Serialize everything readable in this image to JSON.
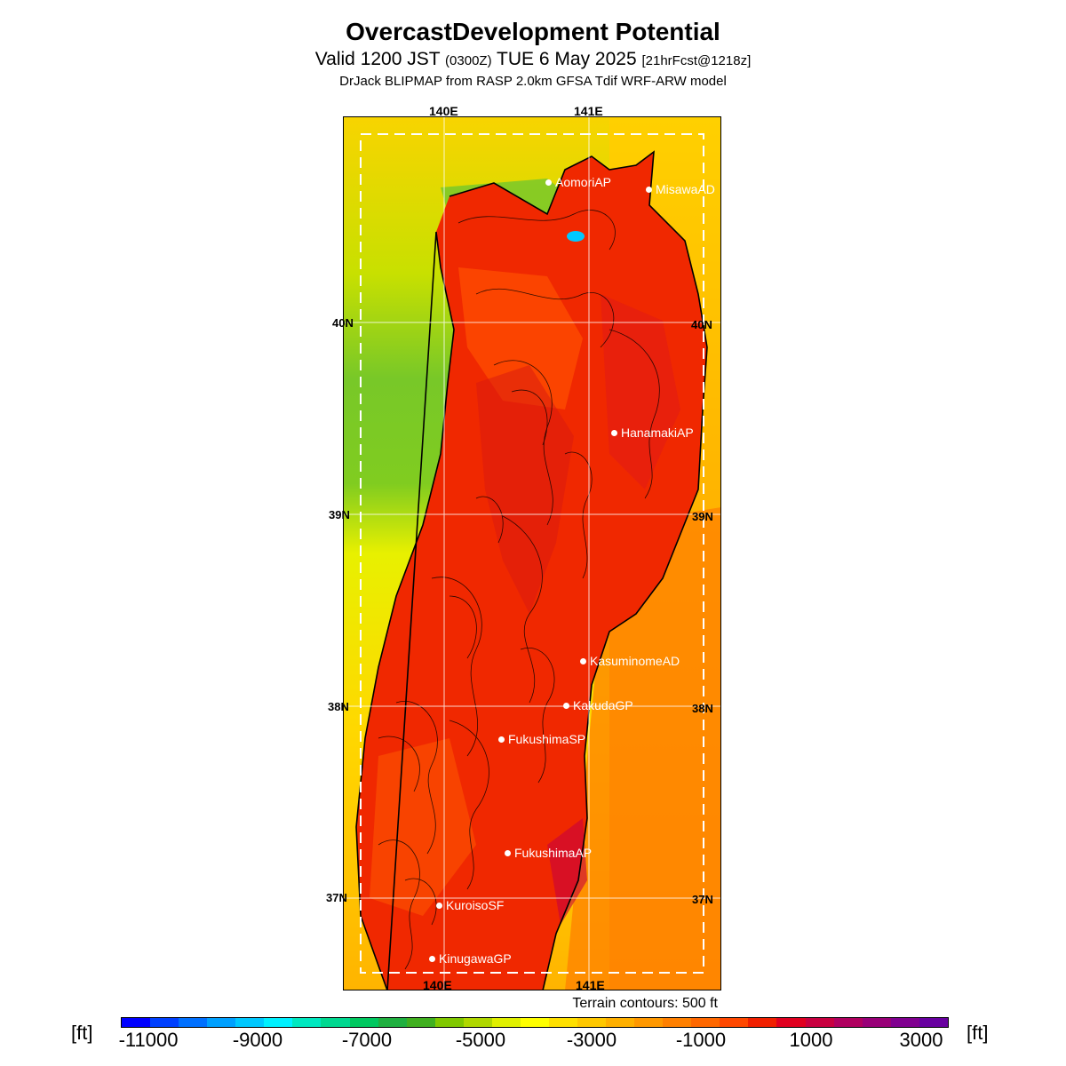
{
  "header": {
    "title": "OvercastDevelopment Potential",
    "subtitle_valid": "Valid 1200 JST",
    "subtitle_utc": "(0300Z)",
    "subtitle_date": "TUE 6 May 2025",
    "subtitle_fcst": "[21hrFcst@1218z]",
    "model": "DrJack BLIPMAP from RASP 2.0km GFSA Tdif WRF-ARW model"
  },
  "map": {
    "lon_labels": [
      "140E",
      "141E"
    ],
    "lat_labels": [
      "40N",
      "39N",
      "38N",
      "37N"
    ],
    "stations": [
      {
        "name": "AomoriAP"
      },
      {
        "name": "MisawaAD"
      },
      {
        "name": "HanamakiAP"
      },
      {
        "name": "KasuminomeAD"
      },
      {
        "name": "KakudaGP"
      },
      {
        "name": "FukushimaSP"
      },
      {
        "name": "FukushimaAP"
      },
      {
        "name": "KuroisoSF"
      },
      {
        "name": "KinugawaGP"
      }
    ],
    "terrain_note": "Terrain contours: 500 ft"
  },
  "colorbar": {
    "unit": "[ft]",
    "tick_labels": [
      "-11000",
      "-9000",
      "-7000",
      "-5000",
      "-3000",
      "-1000",
      "1000",
      "3000"
    ],
    "colors": [
      "#0000ff",
      "#0040ff",
      "#0070ff",
      "#00a0ff",
      "#00c8ff",
      "#00f0ff",
      "#00e8c0",
      "#00d890",
      "#00c860",
      "#20b040",
      "#40b020",
      "#80c800",
      "#b0d800",
      "#e0f000",
      "#ffff00",
      "#ffe000",
      "#ffc800",
      "#ffb000",
      "#ff9800",
      "#ff8000",
      "#ff6800",
      "#ff4800",
      "#f02000",
      "#e00020",
      "#c80040",
      "#b00060",
      "#980078",
      "#800090",
      "#6800a0"
    ]
  }
}
